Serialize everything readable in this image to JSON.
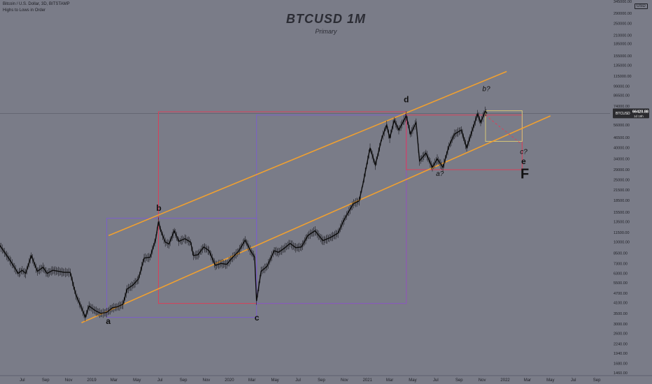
{
  "header": {
    "symbol_line": "Bitcoin / U.S. Dollar, 3D, BITSTAMP",
    "indicator_line": "Highs to Lows in Order"
  },
  "title": "BTCUSD 1M",
  "subtitle": "Primary",
  "currency": "USD",
  "price_tag": {
    "symbol": "BTCUSD",
    "price": "66420.88",
    "countdown": "1d 19h"
  },
  "colors": {
    "background": "#7a7c88",
    "channel": "#f0a030",
    "purple_box": "#7b5fc8",
    "red_box": "#d9405a",
    "yellow_box": "#d8c878",
    "price_path": "#0c0c0c",
    "axis_text": "#1f2026"
  },
  "chart_data": {
    "type": "line",
    "log_scale": true,
    "ylim": [
      1400,
      345000
    ],
    "y_ticks": [
      345000,
      290000,
      250000,
      210000,
      185000,
      155000,
      135000,
      115000,
      99000,
      86500,
      74000,
      64000,
      56000,
      46500,
      40000,
      34000,
      29000,
      25000,
      21500,
      18500,
      15500,
      13500,
      11500,
      10000,
      8500,
      7300,
      6300,
      5500,
      4700,
      4100,
      3500,
      3000,
      2600,
      2240,
      1940,
      1680,
      1460
    ],
    "x_ticks": [
      {
        "label": "Jul",
        "x": "2018-07-01"
      },
      {
        "label": "Sep",
        "x": "2018-09-01"
      },
      {
        "label": "Nov",
        "x": "2018-11-01"
      },
      {
        "label": "2019",
        "x": "2019-01-01"
      },
      {
        "label": "Mar",
        "x": "2019-03-01"
      },
      {
        "label": "May",
        "x": "2019-05-01"
      },
      {
        "label": "Jul",
        "x": "2019-07-01"
      },
      {
        "label": "Sep",
        "x": "2019-09-01"
      },
      {
        "label": "Nov",
        "x": "2019-11-01"
      },
      {
        "label": "2020",
        "x": "2020-01-01"
      },
      {
        "label": "Mar",
        "x": "2020-03-01"
      },
      {
        "label": "May",
        "x": "2020-05-01"
      },
      {
        "label": "Jul",
        "x": "2020-07-01"
      },
      {
        "label": "Sep",
        "x": "2020-09-01"
      },
      {
        "label": "Nov",
        "x": "2020-11-01"
      },
      {
        "label": "2021",
        "x": "2021-01-01"
      },
      {
        "label": "Mar",
        "x": "2021-03-01"
      },
      {
        "label": "May",
        "x": "2021-05-01"
      },
      {
        "label": "Jul",
        "x": "2021-07-01"
      },
      {
        "label": "Sep",
        "x": "2021-09-01"
      },
      {
        "label": "Nov",
        "x": "2021-11-01"
      },
      {
        "label": "2022",
        "x": "2022-01-01"
      },
      {
        "label": "Mar",
        "x": "2022-03-01"
      },
      {
        "label": "May",
        "x": "2022-05-01"
      },
      {
        "label": "Jul",
        "x": "2022-07-01"
      },
      {
        "label": "Sep",
        "x": "2022-09-01"
      }
    ],
    "x_range": [
      "2018-05-03",
      "2022-10-06"
    ],
    "last_price": 66420.88,
    "price_path": [
      [
        "2018-05-03",
        9500
      ],
      [
        "2018-05-15",
        8600
      ],
      [
        "2018-06-01",
        7500
      ],
      [
        "2018-06-20",
        6300
      ],
      [
        "2018-07-01",
        6600
      ],
      [
        "2018-07-10",
        6300
      ],
      [
        "2018-07-25",
        8200
      ],
      [
        "2018-08-10",
        6500
      ],
      [
        "2018-08-25",
        6900
      ],
      [
        "2018-09-05",
        6300
      ],
      [
        "2018-09-20",
        6600
      ],
      [
        "2018-10-05",
        6500
      ],
      [
        "2018-10-20",
        6400
      ],
      [
        "2018-11-05",
        6400
      ],
      [
        "2018-11-20",
        4600
      ],
      [
        "2018-12-05",
        3800
      ],
      [
        "2018-12-15",
        3300
      ],
      [
        "2018-12-25",
        3900
      ],
      [
        "2019-01-10",
        3650
      ],
      [
        "2019-01-25",
        3500
      ],
      [
        "2019-02-10",
        3550
      ],
      [
        "2019-02-25",
        3800
      ],
      [
        "2019-03-10",
        3850
      ],
      [
        "2019-03-25",
        4000
      ],
      [
        "2019-04-05",
        5000
      ],
      [
        "2019-04-20",
        5300
      ],
      [
        "2019-05-05",
        5800
      ],
      [
        "2019-05-20",
        7900
      ],
      [
        "2019-06-05",
        8000
      ],
      [
        "2019-06-20",
        10500
      ],
      [
        "2019-06-27",
        13500
      ],
      [
        "2019-07-05",
        11500
      ],
      [
        "2019-07-15",
        10000
      ],
      [
        "2019-07-25",
        9700
      ],
      [
        "2019-08-08",
        11800
      ],
      [
        "2019-08-20",
        10100
      ],
      [
        "2019-09-05",
        10500
      ],
      [
        "2019-09-20",
        10000
      ],
      [
        "2019-09-28",
        8200
      ],
      [
        "2019-10-10",
        8300
      ],
      [
        "2019-10-25",
        9300
      ],
      [
        "2019-11-08",
        8800
      ],
      [
        "2019-11-25",
        7100
      ],
      [
        "2019-12-10",
        7300
      ],
      [
        "2019-12-25",
        7200
      ],
      [
        "2020-01-10",
        8000
      ],
      [
        "2020-01-25",
        8700
      ],
      [
        "2020-02-12",
        10300
      ],
      [
        "2020-02-25",
        8900
      ],
      [
        "2020-03-08",
        8000
      ],
      [
        "2020-03-13",
        4200
      ],
      [
        "2020-03-25",
        6500
      ],
      [
        "2020-04-10",
        7000
      ],
      [
        "2020-04-29",
        8800
      ],
      [
        "2020-05-10",
        8600
      ],
      [
        "2020-05-25",
        9100
      ],
      [
        "2020-06-10",
        9800
      ],
      [
        "2020-06-25",
        9200
      ],
      [
        "2020-07-10",
        9300
      ],
      [
        "2020-07-27",
        11000
      ],
      [
        "2020-08-15",
        11800
      ],
      [
        "2020-09-05",
        10200
      ],
      [
        "2020-09-25",
        10700
      ],
      [
        "2020-10-15",
        11400
      ],
      [
        "2020-10-28",
        13400
      ],
      [
        "2020-11-10",
        15300
      ],
      [
        "2020-11-25",
        17600
      ],
      [
        "2020-12-10",
        18300
      ],
      [
        "2020-12-20",
        23500
      ],
      [
        "2021-01-08",
        40000
      ],
      [
        "2021-01-22",
        31000
      ],
      [
        "2021-02-08",
        46000
      ],
      [
        "2021-02-21",
        56000
      ],
      [
        "2021-03-01",
        46000
      ],
      [
        "2021-03-13",
        60000
      ],
      [
        "2021-03-25",
        52000
      ],
      [
        "2021-04-14",
        64000
      ],
      [
        "2021-04-25",
        49000
      ],
      [
        "2021-05-10",
        58000
      ],
      [
        "2021-05-19",
        33000
      ],
      [
        "2021-06-05",
        37000
      ],
      [
        "2021-06-22",
        30000
      ],
      [
        "2021-07-05",
        34000
      ],
      [
        "2021-07-20",
        30000
      ],
      [
        "2021-08-05",
        41000
      ],
      [
        "2021-08-20",
        49000
      ],
      [
        "2021-09-07",
        52000
      ],
      [
        "2021-09-21",
        40000
      ],
      [
        "2021-10-05",
        51000
      ],
      [
        "2021-10-20",
        66000
      ],
      [
        "2021-10-28",
        58000
      ],
      [
        "2021-11-09",
        68500
      ],
      [
        "2021-11-14",
        66420
      ]
    ],
    "channel_lines": [
      {
        "name": "channel-upper",
        "from": [
          "2019-02-15",
          11000
        ],
        "to": [
          "2022-01-05",
          123000
        ]
      },
      {
        "name": "channel-lower",
        "from": [
          "2018-12-05",
          3050
        ],
        "to": [
          "2022-05-01",
          64000
        ]
      }
    ],
    "boxes": [
      {
        "name": "box-purple-1",
        "color": "purple_box",
        "x": [
          "2019-02-10",
          "2020-03-13"
        ],
        "y": [
          3300,
          14200
        ]
      },
      {
        "name": "box-red-1",
        "color": "red_box",
        "x": [
          "2019-06-27",
          "2021-04-14"
        ],
        "y": [
          4050,
          68000
        ]
      },
      {
        "name": "box-purple-2",
        "color": "purple_box",
        "x": [
          "2020-03-13",
          "2021-04-14"
        ],
        "y": [
          4050,
          64800
        ]
      },
      {
        "name": "box-red-2",
        "color": "red_box",
        "x": [
          "2021-04-14",
          "2022-02-15"
        ],
        "y": [
          29000,
          64800
        ]
      },
      {
        "name": "box-yellow",
        "color": "yellow_box",
        "x": [
          "2021-11-10",
          "2022-02-15"
        ],
        "y": [
          44000,
          69000
        ]
      }
    ],
    "dashed_projection": {
      "from": [
        "2021-11-10",
        64500
      ],
      "to": [
        "2022-02-15",
        42000
      ]
    },
    "wave_labels": [
      {
        "text": "a",
        "x": "2019-02-14",
        "y": 3000,
        "style": "bold"
      },
      {
        "text": "b",
        "x": "2019-06-28",
        "y": 15800,
        "style": "bold"
      },
      {
        "text": "c",
        "x": "2020-03-14",
        "y": 3150,
        "style": "bold"
      },
      {
        "text": "d",
        "x": "2021-04-14",
        "y": 78000,
        "style": "bold"
      },
      {
        "text": "a?",
        "x": "2021-07-12",
        "y": 26500,
        "style": "italic"
      },
      {
        "text": "b?",
        "x": "2021-11-12",
        "y": 92000,
        "style": "italic"
      },
      {
        "text": "c?",
        "x": "2022-02-19",
        "y": 36500,
        "style": "italic"
      },
      {
        "text": "e",
        "x": "2022-02-19",
        "y": 31500,
        "style": "bold"
      },
      {
        "text": "F",
        "x": "2022-02-22",
        "y": 25500,
        "style": "bold-large"
      }
    ]
  }
}
